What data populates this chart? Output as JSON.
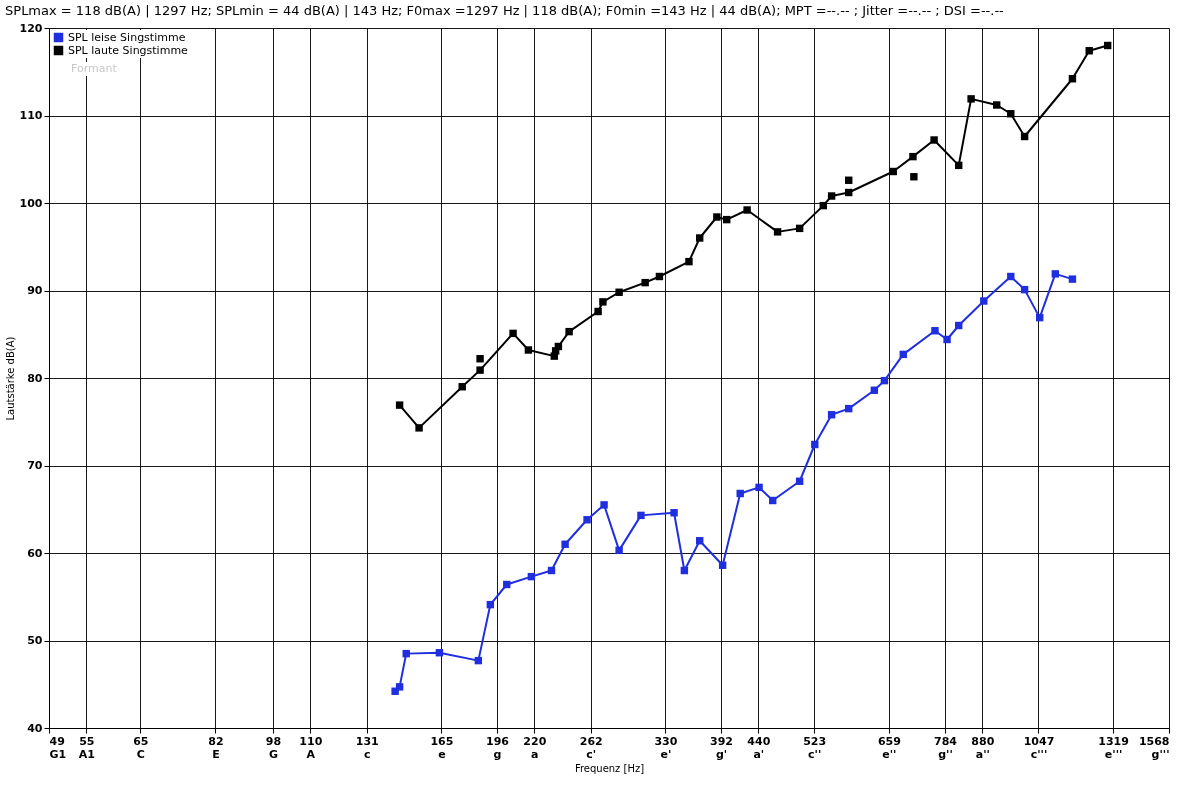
{
  "chart_data": {
    "type": "line",
    "title": "SPLmax = 118 dB(A) | 1297 Hz; SPLmin = 44 dB(A) | 143 Hz; F0max =1297 Hz | 118 dB(A); F0min =143 Hz | 44 dB(A); MPT =--.-- ; Jitter =--.-- ; DSI =--.--",
    "xlabel": "Frequenz [Hz]",
    "ylabel": "Lautstärke  dB(A)",
    "log": "x",
    "xlim": [
      49,
      1568
    ],
    "ylim": [
      40,
      120
    ],
    "xticks": [
      {
        "value": 49,
        "label": "49\nG1"
      },
      {
        "value": 55,
        "label": "55\nA1"
      },
      {
        "value": 65,
        "label": "65\nC"
      },
      {
        "value": 82,
        "label": "82\nE"
      },
      {
        "value": 98,
        "label": "98\nG"
      },
      {
        "value": 110,
        "label": "110\nA"
      },
      {
        "value": 131,
        "label": "131\nc"
      },
      {
        "value": 165,
        "label": "165\ne"
      },
      {
        "value": 196,
        "label": "196\ng"
      },
      {
        "value": 220,
        "label": "220\na"
      },
      {
        "value": 262,
        "label": "262\nc'"
      },
      {
        "value": 330,
        "label": "330\ne'"
      },
      {
        "value": 392,
        "label": "392\ng'"
      },
      {
        "value": 440,
        "label": "440\na'"
      },
      {
        "value": 523,
        "label": "523\nc''"
      },
      {
        "value": 659,
        "label": "659\ne''"
      },
      {
        "value": 784,
        "label": "784\ng''"
      },
      {
        "value": 880,
        "label": "880\na''"
      },
      {
        "value": 1047,
        "label": "1047\nc'''"
      },
      {
        "value": 1319,
        "label": "1319\ne'''"
      },
      {
        "value": 1568,
        "label": "1568\ng'''"
      }
    ],
    "yticks": [
      40,
      50,
      60,
      70,
      80,
      90,
      100,
      110,
      120
    ],
    "grid": true,
    "legend": "top left",
    "marker": "square",
    "line_style": "solid",
    "annotations": [
      "Formant"
    ],
    "series": [
      {
        "name": "SPL leise Singstimme",
        "color": "#1f2fe0",
        "x": [
          143,
          145,
          148,
          164,
          185,
          192,
          202,
          218,
          232,
          242,
          259,
          273,
          286,
          306,
          339,
          350,
          367,
          394,
          416,
          441,
          460,
          500,
          524,
          552,
          582,
          630,
          650,
          689,
          760,
          789,
          818,
          884,
          961,
          1003,
          1051,
          1103,
          1163
        ],
        "values": [
          44.2,
          44.7,
          48.5,
          48.6,
          47.7,
          54.1,
          56.4,
          57.3,
          58.0,
          61.0,
          63.8,
          65.5,
          60.3,
          64.3,
          64.6,
          58.0,
          61.4,
          58.6,
          66.8,
          67.5,
          66.0,
          68.2,
          72.4,
          75.8,
          76.5,
          78.6,
          79.7,
          82.7,
          85.4,
          84.4,
          86.0,
          88.8,
          91.6,
          90.1,
          86.9,
          91.9,
          91.3
        ]
      },
      {
        "name": "SPL laute Singstimme",
        "color": "#000000",
        "x": [
          145,
          154,
          176,
          186,
          206,
          216,
          234,
          235,
          237,
          245,
          268,
          272,
          286,
          310,
          324,
          355,
          367,
          387,
          399,
          425,
          467,
          500,
          538,
          552,
          582,
          668,
          710,
          758,
          818,
          850,
          920,
          961,
          1003,
          1163,
          1225,
          1297
        ],
        "values": [
          76.9,
          74.3,
          79.0,
          80.9,
          85.1,
          83.2,
          82.5,
          83.1,
          83.6,
          85.3,
          87.6,
          88.7,
          89.8,
          90.9,
          91.6,
          93.3,
          96.0,
          98.4,
          98.1,
          99.2,
          96.7,
          97.1,
          99.7,
          100.8,
          101.2,
          103.6,
          105.3,
          107.2,
          104.3,
          111.9,
          111.2,
          110.2,
          107.6,
          114.2,
          117.4,
          118.0
        ]
      },
      {
        "type": "scatter",
        "color": "#000000",
        "x": [
          186,
          582,
          712
        ],
        "values": [
          82.2,
          102.6,
          103.0
        ]
      }
    ]
  }
}
